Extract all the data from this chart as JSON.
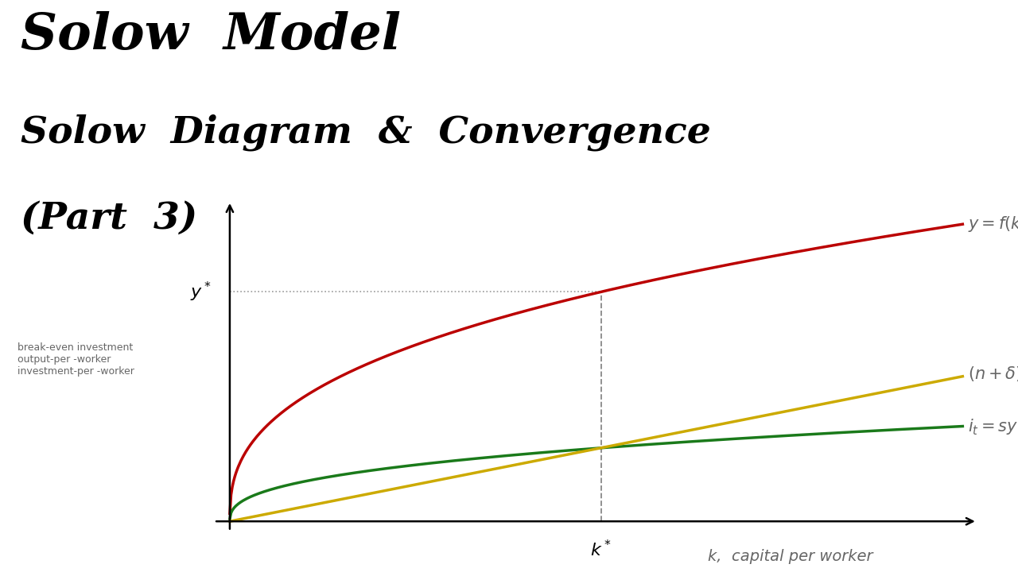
{
  "title1": "Solow  Model",
  "title2": "Solow  Diagram  &  Convergence",
  "title3": "(Part  3)",
  "ylabel_text": "break-even investment\noutput-per -worker\ninvestment-per -worker",
  "xlabel_text": "k,  capital per worker",
  "kstar_label": "k*",
  "ystar_label": "y*",
  "bg_color": "#ffffff",
  "curve_red_color": "#bb0000",
  "curve_green_color": "#1a7a1a",
  "curve_yellow_color": "#ccaa00",
  "dashed_color": "#888888",
  "dotted_color": "#999999",
  "label_color": "#666666",
  "A": 1.0,
  "alpha": 0.38,
  "s": 0.32,
  "n_delta": 0.095,
  "k_max": 14.0,
  "title1_fontsize": 46,
  "title23_fontsize": 34,
  "axis_label_fontsize": 14,
  "curve_label_fontsize": 15,
  "ylabel_fontsize": 9,
  "linewidth": 2.5
}
